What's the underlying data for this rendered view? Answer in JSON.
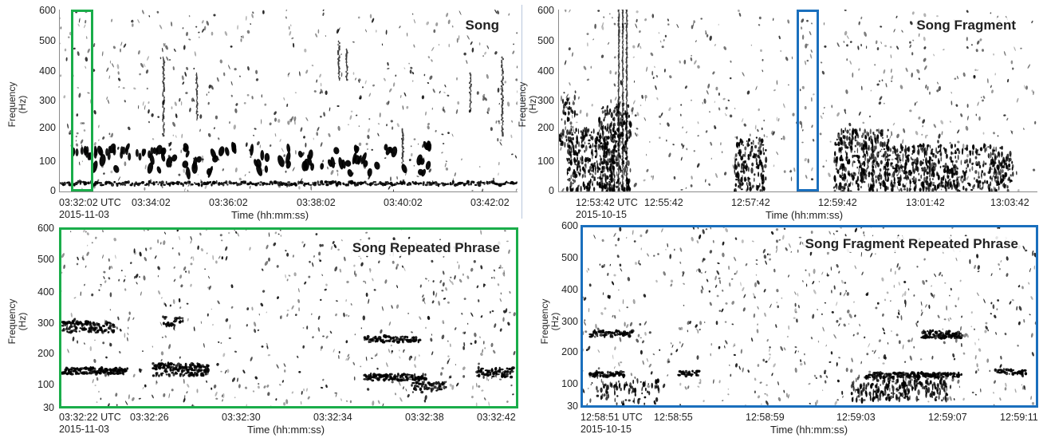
{
  "panels": [
    {
      "key": "a",
      "title": "Song",
      "ylabel": [
        "Frequency",
        "(Hz)"
      ],
      "xlabel": "Time (hh:mm:ss)",
      "yticks": [
        "0",
        "100",
        "200",
        "300",
        "400",
        "500",
        "600"
      ],
      "xticks": [
        "03:32:02 UTC",
        "03:34:02",
        "03:36:02",
        "03:38:02",
        "03:40:02",
        "03:42:02"
      ],
      "date": "2015-11-03",
      "highlight_color": "#1aad4a"
    },
    {
      "key": "b",
      "title": "Song Fragment",
      "ylabel": [
        "Frequency",
        "(Hz)"
      ],
      "xlabel": "Time (hh:mm:ss)",
      "yticks": [
        "0",
        "100",
        "200",
        "300",
        "400",
        "500",
        "600"
      ],
      "xticks": [
        "12:53:42 UTC",
        "12:55:42",
        "12:57:42",
        "12:59:42",
        "13:01:42",
        "13:03:42"
      ],
      "date": "2015-10-15",
      "highlight_color": "#1a6fbd"
    },
    {
      "key": "c",
      "title": "Song Repeated Phrase",
      "ylabel": [
        "Frequency",
        "(Hz)"
      ],
      "xlabel": "Time (hh:mm:ss)",
      "yticks": [
        "30",
        "100",
        "200",
        "300",
        "400",
        "500",
        "600"
      ],
      "xticks": [
        "03:32:22 UTC",
        "03:32:26",
        "03:32:30",
        "03:32:34",
        "03:32:38",
        "03:32:42"
      ],
      "date": "2015-11-03",
      "frame_color": "#1aad4a"
    },
    {
      "key": "d",
      "title": "Song Fragment Repeated Phrase",
      "ylabel": [
        "Frequency",
        "(Hz)"
      ],
      "xlabel": "Time (hh:mm:ss)",
      "yticks": [
        "30",
        "100",
        "200",
        "300",
        "400",
        "500",
        "600"
      ],
      "xticks": [
        "12:58:51 UTC",
        "12:58:55",
        "12:58:59",
        "12:59:03",
        "12:59:07",
        "12:59:11"
      ],
      "date": "2015-10-15",
      "frame_color": "#1a6fbd"
    }
  ]
}
